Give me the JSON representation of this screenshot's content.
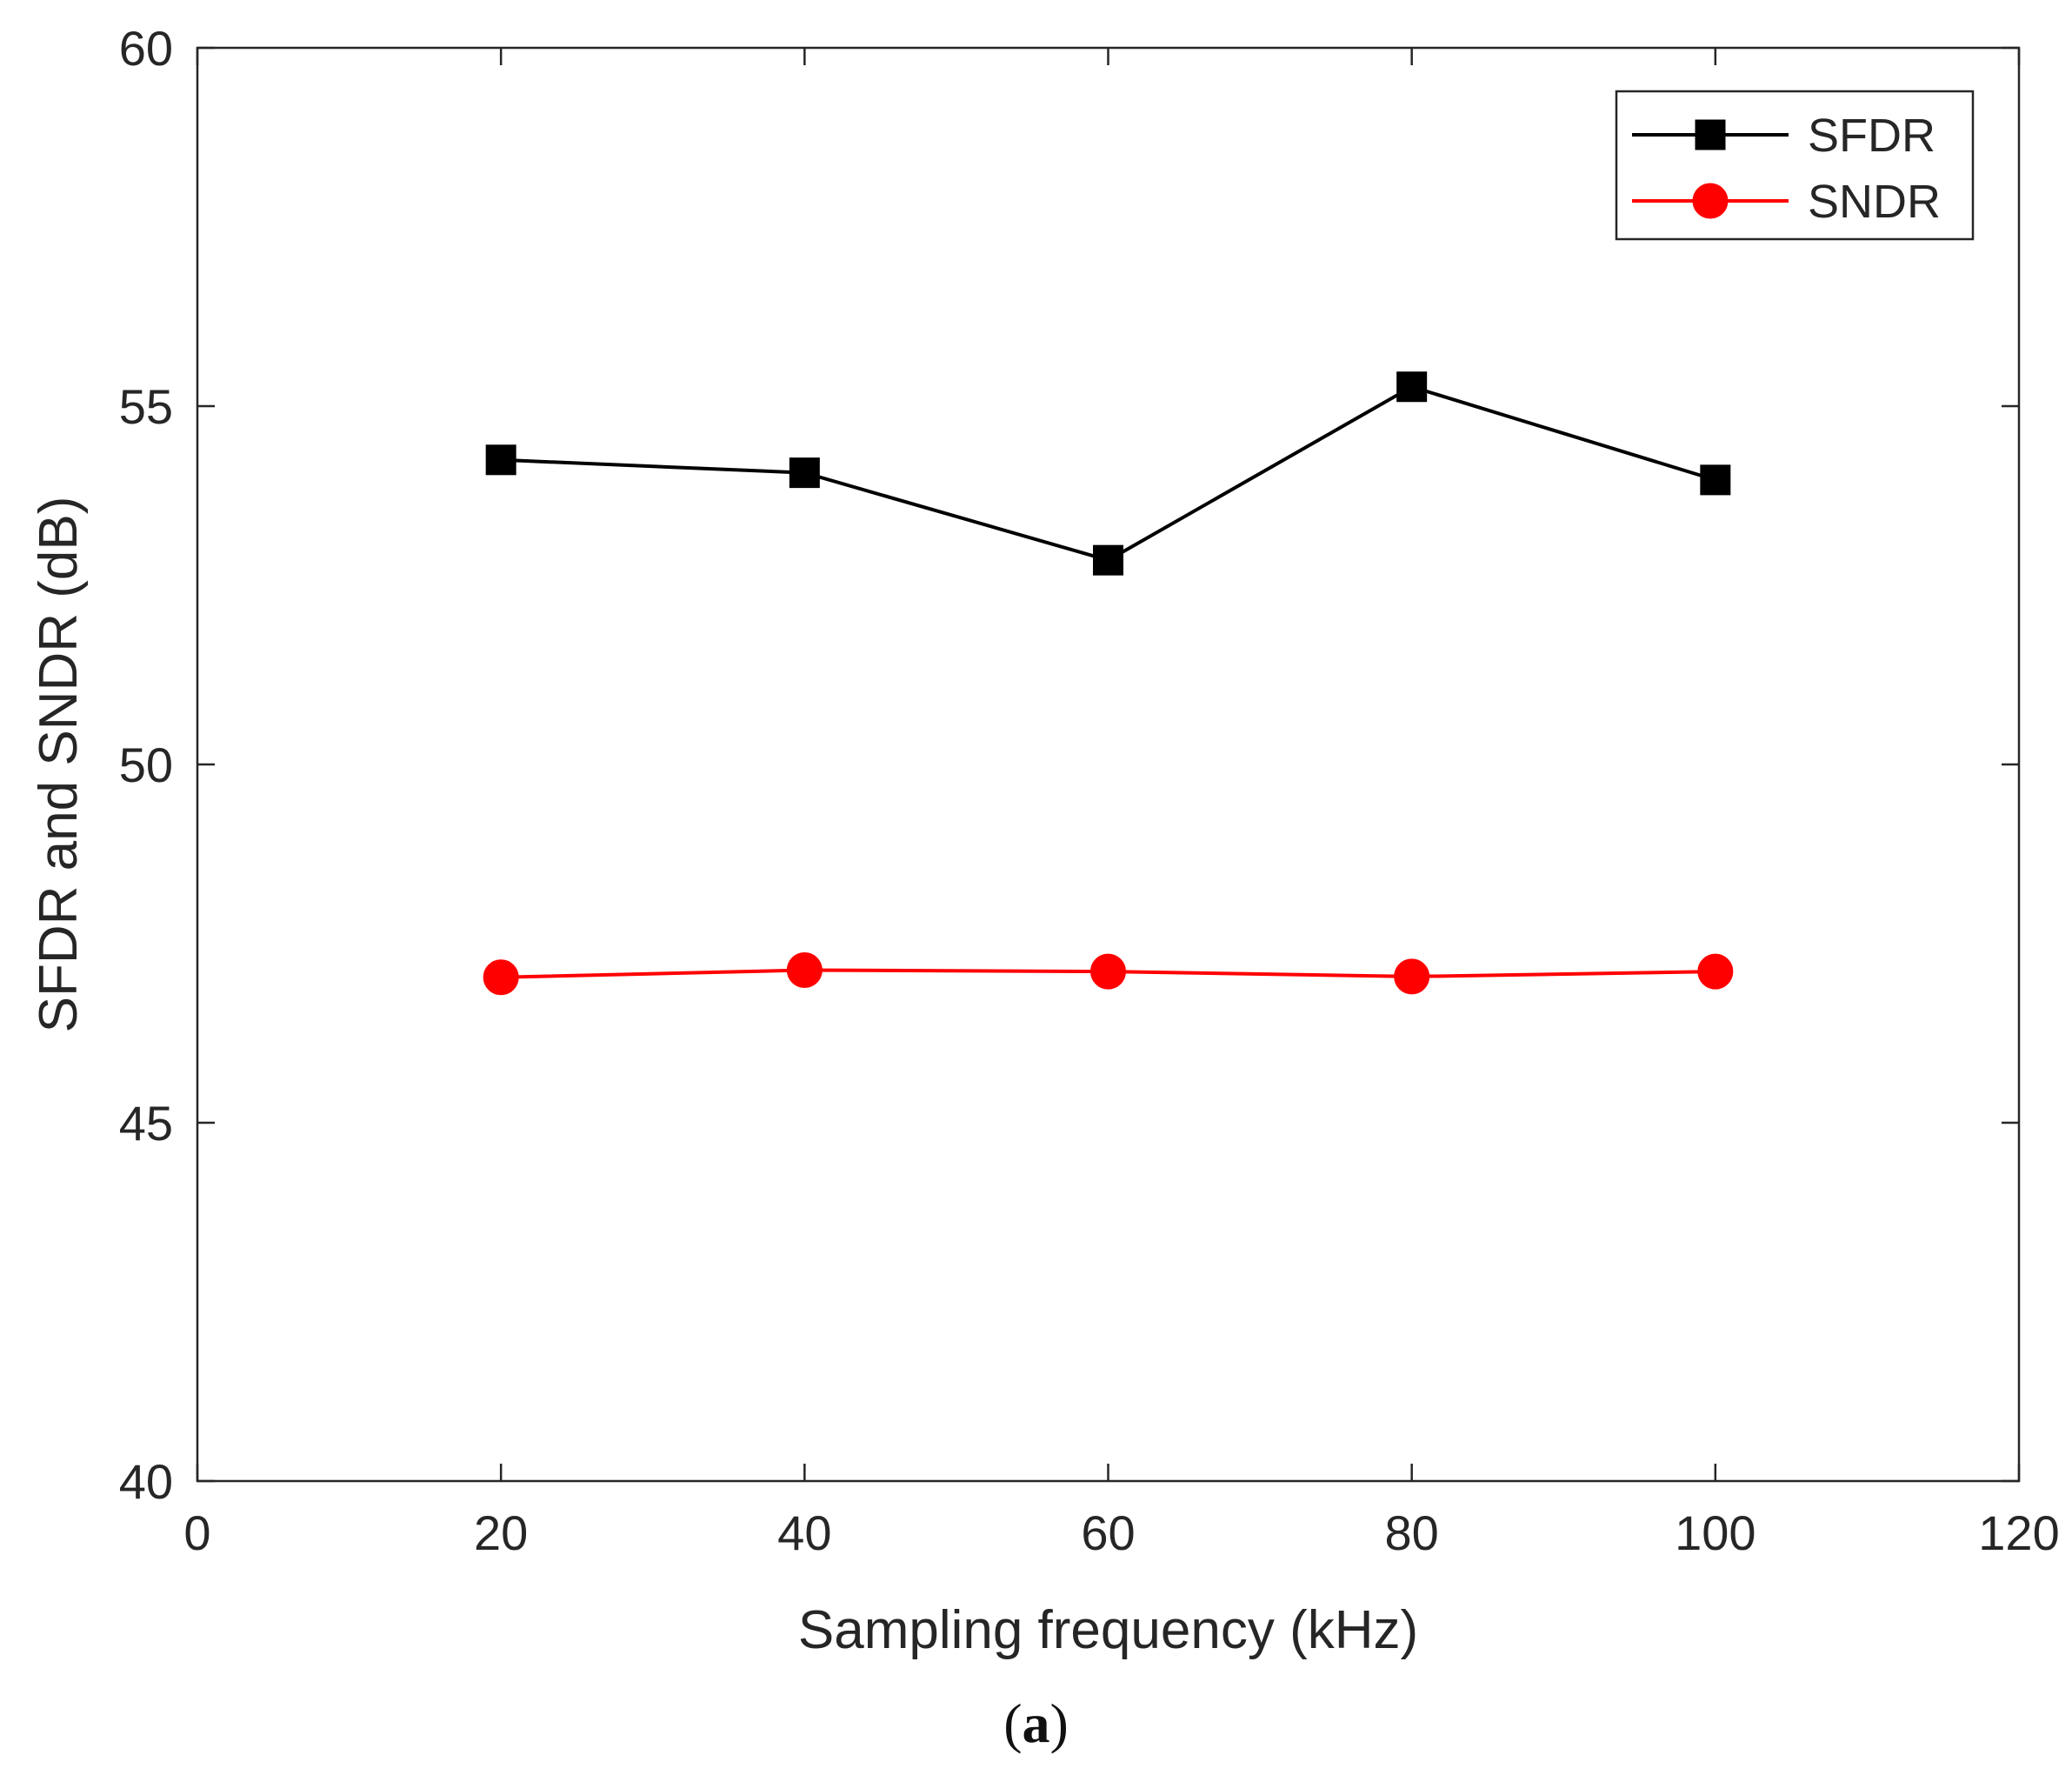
{
  "chart_data": {
    "type": "line",
    "title": "",
    "xlabel": "Sampling frequency (kHz)",
    "ylabel": "SFDR and SNDR (dB)",
    "xlim": [
      0,
      120
    ],
    "ylim": [
      40,
      60
    ],
    "xticks": [
      0,
      20,
      40,
      60,
      80,
      100,
      120
    ],
    "yticks": [
      40,
      45,
      50,
      55,
      60
    ],
    "grid": false,
    "legend_position": "top-right",
    "x": [
      20,
      40,
      60,
      80,
      100
    ],
    "series": [
      {
        "name": "SFDR",
        "color": "#000000",
        "marker": "square",
        "values": [
          54.25,
          54.07,
          52.85,
          55.27,
          53.97
        ]
      },
      {
        "name": "SNDR",
        "color": "#ff0000",
        "marker": "circle",
        "values": [
          47.03,
          47.13,
          47.11,
          47.04,
          47.11
        ]
      }
    ]
  },
  "caption": {
    "open": "(",
    "label": "a",
    "close": ")"
  }
}
